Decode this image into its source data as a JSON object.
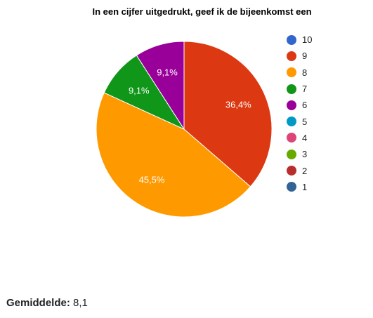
{
  "chart_data": {
    "type": "pie",
    "title": "In een cijfer uitgedrukt, geef ik de bijeenkomst een",
    "slices": [
      {
        "label": "9",
        "value": 36.4,
        "display": "36,4%",
        "color": "#dc3912"
      },
      {
        "label": "8",
        "value": 45.5,
        "display": "45,5%",
        "color": "#ff9900"
      },
      {
        "label": "7",
        "value": 9.1,
        "display": "9,1%",
        "color": "#109618"
      },
      {
        "label": "6",
        "value": 9.1,
        "display": "9,1%",
        "color": "#990099"
      }
    ],
    "legend_position": "right",
    "legend": [
      {
        "label": "10",
        "color": "#3366cc"
      },
      {
        "label": "9",
        "color": "#dc3912"
      },
      {
        "label": "8",
        "color": "#ff9900"
      },
      {
        "label": "7",
        "color": "#109618"
      },
      {
        "label": "6",
        "color": "#990099"
      },
      {
        "label": "5",
        "color": "#0099c6"
      },
      {
        "label": "4",
        "color": "#dd4477"
      },
      {
        "label": "3",
        "color": "#66aa00"
      },
      {
        "label": "2",
        "color": "#b82e2e"
      },
      {
        "label": "1",
        "color": "#316395"
      }
    ]
  },
  "average": {
    "label": "Gemiddelde:",
    "value": "8,1"
  }
}
